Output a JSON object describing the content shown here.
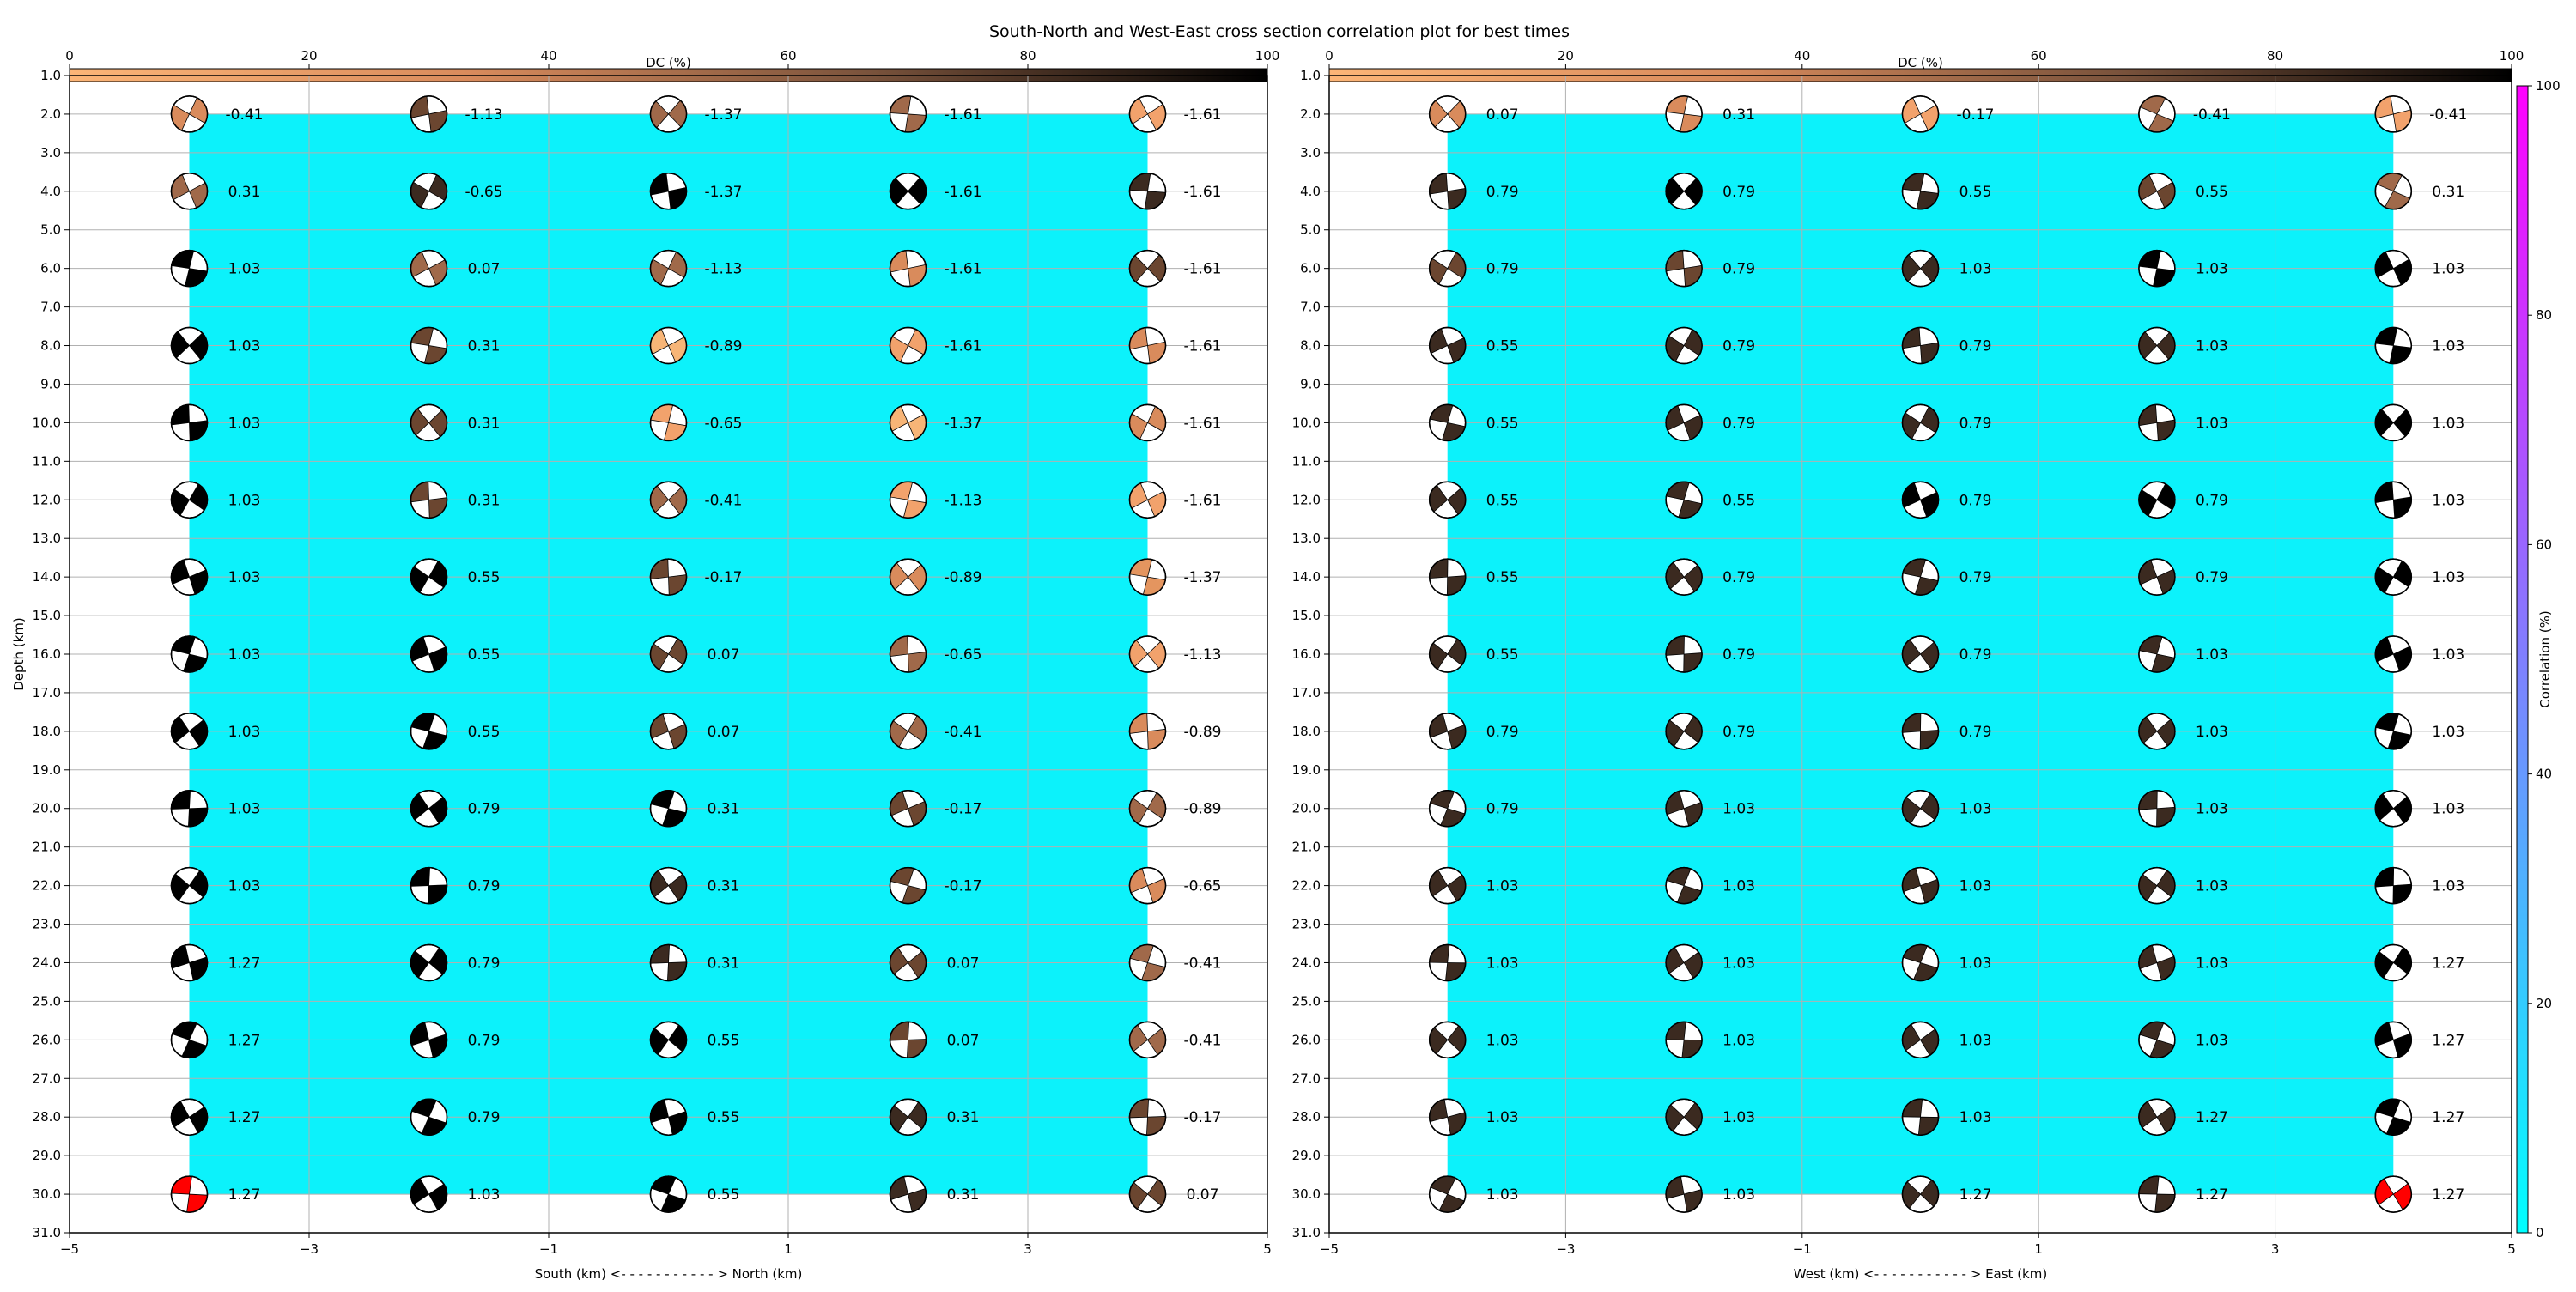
{
  "title": "South-North and West-East cross section correlation plot for best times",
  "colorbar_dc": {
    "label": "DC (%)",
    "ticks": [
      0,
      20,
      40,
      60,
      80,
      100
    ],
    "colors": [
      "#fcb577",
      "#d98b5c",
      "#7a533c",
      "#000000"
    ]
  },
  "colorbar_corr": {
    "label": "Correlation (%)",
    "ticks": [
      0,
      20,
      40,
      60,
      80,
      100
    ],
    "colors": [
      "#00ffff",
      "#ff00ff"
    ]
  },
  "background_color": "#0cf2fb",
  "chart_data": [
    {
      "type": "scatter",
      "name": "south-north",
      "xlabel": "South (km) <- - - - - - - - - - - > North (km)",
      "ylabel": "Depth (km)",
      "xlim": [
        -5,
        5
      ],
      "ylim": [
        31,
        1
      ],
      "xticks": [
        -5,
        -3,
        -1,
        1,
        3,
        5
      ],
      "yticks": [
        1,
        2,
        3,
        4,
        5,
        6,
        7,
        8,
        9,
        10,
        11,
        12,
        13,
        14,
        15,
        16,
        17,
        18,
        19,
        20,
        21,
        22,
        23,
        24,
        25,
        26,
        27,
        28,
        29,
        30,
        31
      ],
      "x": [
        -4,
        -2,
        0,
        2,
        4
      ],
      "depths": [
        2,
        4,
        6,
        8,
        10,
        12,
        14,
        16,
        18,
        20,
        22,
        24,
        26,
        28,
        30
      ],
      "labels": [
        [
          "-0.41",
          "-1.13",
          "-1.37",
          "-1.61",
          "-1.61"
        ],
        [
          "0.31",
          "-0.65",
          "-1.37",
          "-1.61",
          "-1.61"
        ],
        [
          "1.03",
          "0.07",
          "-1.13",
          "-1.61",
          "-1.61"
        ],
        [
          "1.03",
          "0.31",
          "-0.89",
          "-1.61",
          "-1.61"
        ],
        [
          "1.03",
          "0.31",
          "-0.65",
          "-1.37",
          "-1.61"
        ],
        [
          "1.03",
          "0.31",
          "-0.41",
          "-1.13",
          "-1.61"
        ],
        [
          "1.03",
          "0.55",
          "-0.17",
          "-0.89",
          "-1.37"
        ],
        [
          "1.03",
          "0.55",
          "0.07",
          "-0.65",
          "-1.13"
        ],
        [
          "1.03",
          "0.55",
          "0.07",
          "-0.41",
          "-0.89"
        ],
        [
          "1.03",
          "0.79",
          "0.31",
          "-0.17",
          "-0.89"
        ],
        [
          "1.03",
          "0.79",
          "0.31",
          "-0.17",
          "-0.65"
        ],
        [
          "1.27",
          "0.79",
          "0.31",
          "0.07",
          "-0.41"
        ],
        [
          "1.27",
          "0.79",
          "0.55",
          "0.07",
          "-0.41"
        ],
        [
          "1.27",
          "0.79",
          "0.55",
          "0.31",
          "-0.17"
        ],
        [
          "1.27",
          "1.03",
          "0.55",
          "0.31",
          "0.07"
        ]
      ],
      "ball_colors": [
        [
          "#d98b5c",
          "#6b4630",
          "#a0694a",
          "#a0694a",
          "#f2a26c"
        ],
        [
          "#a0694a",
          "#3b2a20",
          "#000000",
          "#000000",
          "#3b2a20"
        ],
        [
          "#000000",
          "#a0694a",
          "#a0694a",
          "#d98b5c",
          "#6b4630"
        ],
        [
          "#000000",
          "#6b4630",
          "#f7b577",
          "#f2a26c",
          "#d98b5c"
        ],
        [
          "#000000",
          "#6b4630",
          "#f2a26c",
          "#f7b577",
          "#d98b5c"
        ],
        [
          "#000000",
          "#6b4630",
          "#a0694a",
          "#f2a26c",
          "#f2a26c"
        ],
        [
          "#000000",
          "#000000",
          "#6b4630",
          "#d98b5c",
          "#e4955f"
        ],
        [
          "#000000",
          "#000000",
          "#6b4630",
          "#a0694a",
          "#f2a26c"
        ],
        [
          "#000000",
          "#000000",
          "#6b4630",
          "#a0694a",
          "#d98b5c"
        ],
        [
          "#000000",
          "#000000",
          "#000000",
          "#6b4630",
          "#a0694a"
        ],
        [
          "#000000",
          "#000000",
          "#3b2a20",
          "#6b4630",
          "#d98b5c"
        ],
        [
          "#000000",
          "#000000",
          "#3b2a20",
          "#6b4630",
          "#a0694a"
        ],
        [
          "#000000",
          "#000000",
          "#000000",
          "#6b4630",
          "#a0694a"
        ],
        [
          "#000000",
          "#000000",
          "#000000",
          "#3b2a20",
          "#6b4630"
        ],
        [
          "#ff0000",
          "#000000",
          "#000000",
          "#3b2a20",
          "#6b4630"
        ]
      ]
    },
    {
      "type": "scatter",
      "name": "west-east",
      "xlabel": "West (km) <- - - - - - - - - - - > East (km)",
      "ylabel": "",
      "xlim": [
        -5,
        5
      ],
      "ylim": [
        31,
        1
      ],
      "xticks": [
        -5,
        -3,
        -1,
        1,
        3,
        5
      ],
      "yticks": [
        1,
        2,
        3,
        4,
        5,
        6,
        7,
        8,
        9,
        10,
        11,
        12,
        13,
        14,
        15,
        16,
        17,
        18,
        19,
        20,
        21,
        22,
        23,
        24,
        25,
        26,
        27,
        28,
        29,
        30,
        31
      ],
      "x": [
        -4,
        -2,
        0,
        2,
        4
      ],
      "depths": [
        2,
        4,
        6,
        8,
        10,
        12,
        14,
        16,
        18,
        20,
        22,
        24,
        26,
        28,
        30
      ],
      "labels": [
        [
          "0.07",
          "0.31",
          "-0.17",
          "-0.41",
          "-0.41"
        ],
        [
          "0.79",
          "0.79",
          "0.55",
          "0.55",
          "0.31"
        ],
        [
          "0.79",
          "0.79",
          "1.03",
          "1.03",
          "1.03"
        ],
        [
          "0.55",
          "0.79",
          "0.79",
          "1.03",
          "1.03"
        ],
        [
          "0.55",
          "0.79",
          "0.79",
          "1.03",
          "1.03"
        ],
        [
          "0.55",
          "0.55",
          "0.79",
          "0.79",
          "1.03"
        ],
        [
          "0.55",
          "0.79",
          "0.79",
          "0.79",
          "1.03"
        ],
        [
          "0.55",
          "0.79",
          "0.79",
          "1.03",
          "1.03"
        ],
        [
          "0.79",
          "0.79",
          "0.79",
          "1.03",
          "1.03"
        ],
        [
          "0.79",
          "1.03",
          "1.03",
          "1.03",
          "1.03"
        ],
        [
          "1.03",
          "1.03",
          "1.03",
          "1.03",
          "1.03"
        ],
        [
          "1.03",
          "1.03",
          "1.03",
          "1.03",
          "1.27"
        ],
        [
          "1.03",
          "1.03",
          "1.03",
          "1.03",
          "1.27"
        ],
        [
          "1.03",
          "1.03",
          "1.03",
          "1.27",
          "1.27"
        ],
        [
          "1.03",
          "1.03",
          "1.27",
          "1.27",
          "1.27"
        ]
      ],
      "ball_colors": [
        [
          "#d98b5c",
          "#d98b5c",
          "#f2a26c",
          "#a0694a",
          "#f2a26c"
        ],
        [
          "#3b2a20",
          "#000000",
          "#3b2a20",
          "#6b4630",
          "#a0694a"
        ],
        [
          "#6b4630",
          "#6b4630",
          "#3b2a20",
          "#000000",
          "#000000"
        ],
        [
          "#3b2a20",
          "#3b2a20",
          "#3b2a20",
          "#3b2a20",
          "#000000"
        ],
        [
          "#3b2a20",
          "#3b2a20",
          "#3b2a20",
          "#3b2a20",
          "#000000"
        ],
        [
          "#3b2a20",
          "#3b2a20",
          "#000000",
          "#000000",
          "#000000"
        ],
        [
          "#3b2a20",
          "#3b2a20",
          "#3b2a20",
          "#3b2a20",
          "#000000"
        ],
        [
          "#3b2a20",
          "#3b2a20",
          "#3b2a20",
          "#3b2a20",
          "#000000"
        ],
        [
          "#3b2a20",
          "#3b2a20",
          "#3b2a20",
          "#3b2a20",
          "#000000"
        ],
        [
          "#3b2a20",
          "#3b2a20",
          "#3b2a20",
          "#3b2a20",
          "#000000"
        ],
        [
          "#3b2a20",
          "#3b2a20",
          "#3b2a20",
          "#3b2a20",
          "#000000"
        ],
        [
          "#3b2a20",
          "#3b2a20",
          "#3b2a20",
          "#3b2a20",
          "#000000"
        ],
        [
          "#3b2a20",
          "#3b2a20",
          "#3b2a20",
          "#3b2a20",
          "#000000"
        ],
        [
          "#3b2a20",
          "#3b2a20",
          "#3b2a20",
          "#3b2a20",
          "#000000"
        ],
        [
          "#3b2a20",
          "#3b2a20",
          "#3b2a20",
          "#3b2a20",
          "#ff0000"
        ]
      ]
    }
  ]
}
